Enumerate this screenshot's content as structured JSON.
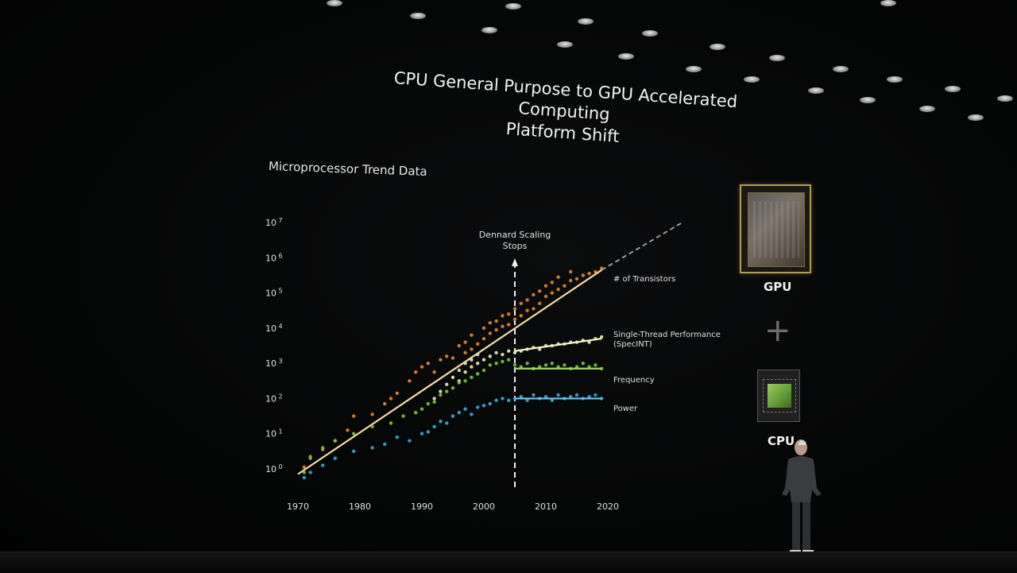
{
  "slide": {
    "title_line1": "CPU General Purpose to GPU Accelerated Computing",
    "title_line2": "Platform Shift",
    "subtitle": "Microprocessor Trend Data",
    "gpu_label": "GPU",
    "plus_symbol": "+",
    "cpu_label": "CPU"
  },
  "colors": {
    "transistors": "#e0862a",
    "single_thread": "#e3e3b8",
    "frequency": "#7cc23a",
    "power": "#3aa6d8",
    "trend_line": "#f3d9a8",
    "single_thread_line": "#f2f2c8",
    "frequency_line": "#9be04c",
    "power_line": "#6cc8ee"
  },
  "icons": [
    "gpu-chip-icon",
    "cpu-chip-icon"
  ],
  "chart_data": {
    "type": "scatter",
    "title": "Microprocessor Trend Data",
    "x_ticks": [
      "1970",
      "1980",
      "1990",
      "2000",
      "2010",
      "2020"
    ],
    "y_ticks": [
      {
        "base": "10",
        "exp": "0"
      },
      {
        "base": "10",
        "exp": "1"
      },
      {
        "base": "10",
        "exp": "2"
      },
      {
        "base": "10",
        "exp": "3"
      },
      {
        "base": "10",
        "exp": "4"
      },
      {
        "base": "10",
        "exp": "5"
      },
      {
        "base": "10",
        "exp": "6"
      },
      {
        "base": "10",
        "exp": "7"
      }
    ],
    "y_scale": "log10",
    "xlim": [
      1970,
      2020
    ],
    "ylim_exp": [
      0,
      7
    ],
    "grid": false,
    "annotation": {
      "label_line1": "Dennard Scaling",
      "label_line2": "Stops",
      "x": 2005
    },
    "series": [
      {
        "name": "# of Transistors",
        "color_key": "transistors",
        "fit": {
          "x": [
            1970,
            2019
          ],
          "y_exp": [
            -0.15,
            5.65
          ]
        },
        "extension": {
          "x": [
            2019,
            2032
          ],
          "y_exp": [
            5.65,
            7.0
          ]
        },
        "points": [
          [
            1971,
            0.05
          ],
          [
            1972,
            0.35
          ],
          [
            1974,
            0.55
          ],
          [
            1976,
            0.8
          ],
          [
            1978,
            1.1
          ],
          [
            1979,
            1.5
          ],
          [
            1982,
            1.55
          ],
          [
            1984,
            1.85
          ],
          [
            1985,
            2.0
          ],
          [
            1986,
            2.15
          ],
          [
            1988,
            2.5
          ],
          [
            1989,
            2.75
          ],
          [
            1990,
            2.9
          ],
          [
            1991,
            3.0
          ],
          [
            1992,
            2.75
          ],
          [
            1993,
            3.1
          ],
          [
            1994,
            3.2
          ],
          [
            1995,
            3.15
          ],
          [
            1996,
            3.5
          ],
          [
            1997,
            3.3
          ],
          [
            1997,
            3.6
          ],
          [
            1998,
            3.4
          ],
          [
            1998,
            3.8
          ],
          [
            1999,
            3.55
          ],
          [
            2000,
            3.7
          ],
          [
            2000,
            4.0
          ],
          [
            2001,
            3.85
          ],
          [
            2001,
            4.15
          ],
          [
            2002,
            3.95
          ],
          [
            2002,
            4.2
          ],
          [
            2003,
            4.05
          ],
          [
            2003,
            4.35
          ],
          [
            2004,
            4.1
          ],
          [
            2004,
            4.4
          ],
          [
            2005,
            4.25
          ],
          [
            2005,
            4.55
          ],
          [
            2006,
            4.35
          ],
          [
            2006,
            4.7
          ],
          [
            2007,
            4.5
          ],
          [
            2007,
            4.8
          ],
          [
            2008,
            4.55
          ],
          [
            2008,
            4.95
          ],
          [
            2009,
            4.7
          ],
          [
            2009,
            5.05
          ],
          [
            2010,
            4.9
          ],
          [
            2010,
            5.2
          ],
          [
            2011,
            5.0
          ],
          [
            2011,
            5.3
          ],
          [
            2012,
            5.1
          ],
          [
            2012,
            5.45
          ],
          [
            2013,
            5.2
          ],
          [
            2014,
            5.35
          ],
          [
            2014,
            5.6
          ],
          [
            2015,
            5.4
          ],
          [
            2016,
            5.5
          ],
          [
            2017,
            5.55
          ],
          [
            2018,
            5.6
          ],
          [
            2019,
            5.7
          ]
        ]
      },
      {
        "name": "Single-Thread Performance (SpecINT)",
        "label_line1": "Single-Thread Performance",
        "label_line2": "(SpecINT)",
        "color_key": "single_thread",
        "fit": {
          "x": [
            2005,
            2019
          ],
          "y_exp": [
            3.35,
            3.7
          ]
        },
        "points": [
          [
            1992,
            2.0
          ],
          [
            1993,
            2.2
          ],
          [
            1994,
            2.4
          ],
          [
            1995,
            2.6
          ],
          [
            1996,
            2.5
          ],
          [
            1996,
            2.8
          ],
          [
            1997,
            2.75
          ],
          [
            1997,
            3.0
          ],
          [
            1998,
            2.9
          ],
          [
            1998,
            3.1
          ],
          [
            1999,
            3.0
          ],
          [
            1999,
            3.25
          ],
          [
            2000,
            3.1
          ],
          [
            2001,
            3.2
          ],
          [
            2002,
            3.3
          ],
          [
            2003,
            3.25
          ],
          [
            2004,
            3.35
          ],
          [
            2005,
            3.3
          ],
          [
            2006,
            3.35
          ],
          [
            2007,
            3.4
          ],
          [
            2008,
            3.45
          ],
          [
            2009,
            3.4
          ],
          [
            2010,
            3.5
          ],
          [
            2011,
            3.5
          ],
          [
            2012,
            3.55
          ],
          [
            2013,
            3.55
          ],
          [
            2014,
            3.6
          ],
          [
            2015,
            3.6
          ],
          [
            2016,
            3.65
          ],
          [
            2017,
            3.6
          ],
          [
            2018,
            3.7
          ],
          [
            2019,
            3.75
          ]
        ]
      },
      {
        "name": "Frequency",
        "color_key": "frequency",
        "fit": {
          "x": [
            2005,
            2019
          ],
          "y_exp": [
            2.85,
            2.85
          ]
        },
        "points": [
          [
            1971,
            -0.1
          ],
          [
            1972,
            0.3
          ],
          [
            1974,
            0.6
          ],
          [
            1976,
            0.8
          ],
          [
            1979,
            1.0
          ],
          [
            1982,
            1.2
          ],
          [
            1985,
            1.3
          ],
          [
            1987,
            1.5
          ],
          [
            1989,
            1.6
          ],
          [
            1990,
            1.7
          ],
          [
            1991,
            1.85
          ],
          [
            1992,
            1.9
          ],
          [
            1993,
            2.1
          ],
          [
            1994,
            2.2
          ],
          [
            1995,
            2.3
          ],
          [
            1996,
            2.45
          ],
          [
            1997,
            2.5
          ],
          [
            1998,
            2.6
          ],
          [
            1999,
            2.7
          ],
          [
            2000,
            2.8
          ],
          [
            2001,
            2.95
          ],
          [
            2002,
            3.0
          ],
          [
            2003,
            3.05
          ],
          [
            2004,
            3.1
          ],
          [
            2005,
            2.95
          ],
          [
            2006,
            2.9
          ],
          [
            2007,
            3.0
          ],
          [
            2008,
            2.85
          ],
          [
            2009,
            2.9
          ],
          [
            2010,
            2.95
          ],
          [
            2011,
            3.0
          ],
          [
            2012,
            2.9
          ],
          [
            2013,
            2.95
          ],
          [
            2014,
            2.85
          ],
          [
            2015,
            2.9
          ],
          [
            2016,
            3.0
          ],
          [
            2017,
            2.9
          ],
          [
            2018,
            2.95
          ],
          [
            2019,
            2.85
          ]
        ]
      },
      {
        "name": "Power",
        "color_key": "power",
        "fit": {
          "x": [
            2005,
            2019
          ],
          "y_exp": [
            2.0,
            2.0
          ]
        },
        "points": [
          [
            1971,
            -0.25
          ],
          [
            1972,
            -0.1
          ],
          [
            1974,
            0.1
          ],
          [
            1976,
            0.3
          ],
          [
            1979,
            0.5
          ],
          [
            1982,
            0.6
          ],
          [
            1984,
            0.7
          ],
          [
            1986,
            0.9
          ],
          [
            1988,
            0.8
          ],
          [
            1990,
            1.0
          ],
          [
            1991,
            1.05
          ],
          [
            1992,
            1.2
          ],
          [
            1993,
            1.35
          ],
          [
            1994,
            1.3
          ],
          [
            1995,
            1.5
          ],
          [
            1996,
            1.6
          ],
          [
            1997,
            1.7
          ],
          [
            1998,
            1.55
          ],
          [
            1999,
            1.75
          ],
          [
            2000,
            1.8
          ],
          [
            2001,
            1.85
          ],
          [
            2002,
            1.95
          ],
          [
            2003,
            2.0
          ],
          [
            2004,
            1.95
          ],
          [
            2005,
            2.0
          ],
          [
            2006,
            2.05
          ],
          [
            2007,
            1.95
          ],
          [
            2008,
            2.1
          ],
          [
            2009,
            2.0
          ],
          [
            2010,
            2.05
          ],
          [
            2011,
            1.95
          ],
          [
            2012,
            2.1
          ],
          [
            2013,
            2.0
          ],
          [
            2014,
            2.05
          ],
          [
            2015,
            2.1
          ],
          [
            2016,
            2.0
          ],
          [
            2017,
            2.05
          ],
          [
            2018,
            2.1
          ],
          [
            2019,
            2.0
          ]
        ]
      }
    ]
  }
}
